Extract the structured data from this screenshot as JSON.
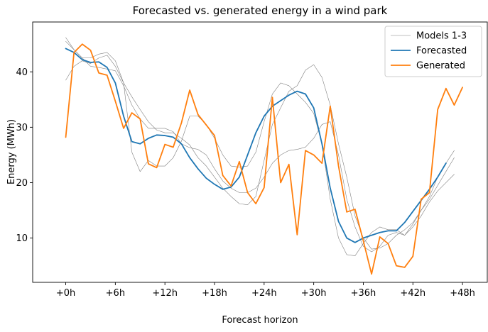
{
  "chart_data": {
    "type": "line",
    "title": "Forecasted vs. generated energy in a wind park",
    "xlabel": "Forecast horizon",
    "ylabel": "Energy (MWh)",
    "xlim": [
      -4,
      51
    ],
    "ylim": [
      2,
      49
    ],
    "xticks": [
      0,
      6,
      12,
      18,
      24,
      30,
      36,
      42,
      48
    ],
    "xtick_labels": [
      "+0h",
      "+6h",
      "+12h",
      "+18h",
      "+24h",
      "+30h",
      "+36h",
      "+42h",
      "+48h"
    ],
    "yticks": [
      10,
      20,
      30,
      40
    ],
    "ytick_labels": [
      "10",
      "20",
      "30",
      "40"
    ],
    "legend_position": "top-right",
    "series": [
      {
        "name": "Models 1-3",
        "color": "#808080",
        "legend": true,
        "values": [
          46.2,
          44.0,
          42.5,
          41.0,
          40.8,
          40.5,
          40.2,
          37.5,
          34.0,
          31.5,
          29.8,
          29.8,
          29.8,
          29.2,
          27.0,
          26.3,
          26.0,
          25.0,
          22.5,
          20.3,
          19.0,
          18.2,
          18.2,
          19.0,
          21.0,
          23.5,
          25.0,
          25.8,
          26.0,
          26.4,
          28.0,
          30.5,
          31.0,
          25.0,
          17.0,
          12.0,
          8.5,
          7.5,
          8.5,
          10.5,
          11.0,
          10.5,
          12.0,
          14.0,
          16.5,
          18.5,
          20.0,
          21.5
        ]
      },
      {
        "name": "Model 2",
        "color": "#808080",
        "legend": false,
        "values": [
          45.5,
          44.0,
          42.5,
          42.5,
          43.2,
          43.5,
          42.0,
          38.0,
          35.5,
          33.2,
          31.0,
          29.5,
          29.0,
          29.0,
          28.0,
          26.8,
          24.5,
          23.0,
          21.0,
          19.0,
          17.5,
          16.2,
          16.0,
          17.5,
          24.0,
          30.5,
          33.5,
          36.5,
          37.5,
          40.3,
          41.3,
          39.0,
          34.0,
          27.0,
          21.0,
          14.0,
          10.0,
          8.0,
          8.2,
          9.0,
          10.5,
          11.5,
          12.8,
          15.0,
          17.0,
          19.5,
          22.0,
          24.5
        ]
      },
      {
        "name": "Model 3",
        "color": "#808080",
        "legend": false,
        "values": [
          38.5,
          41.0,
          42.0,
          41.5,
          42.5,
          43.0,
          41.0,
          38.0,
          25.5,
          22.0,
          24.0,
          23.0,
          23.0,
          24.5,
          27.5,
          32.0,
          32.0,
          30.5,
          28.0,
          25.0,
          23.0,
          22.8,
          23.0,
          25.5,
          31.0,
          36.0,
          38.0,
          37.5,
          36.0,
          34.5,
          32.5,
          27.0,
          17.0,
          10.0,
          7.0,
          6.8,
          9.0,
          11.0,
          12.0,
          11.5,
          11.5,
          10.5,
          12.5,
          15.0,
          17.5,
          21.0,
          23.5,
          25.8
        ]
      },
      {
        "name": "Forecasted",
        "color": "#1f77b4",
        "legend": true,
        "values": [
          44.2,
          43.5,
          42.2,
          41.7,
          41.8,
          40.8,
          38.0,
          32.0,
          27.4,
          27.0,
          28.0,
          28.6,
          28.5,
          28.2,
          27.0,
          24.5,
          22.5,
          20.8,
          19.7,
          18.8,
          19.2,
          21.0,
          25.0,
          29.0,
          32.0,
          33.8,
          34.8,
          35.8,
          36.5,
          36.0,
          33.5,
          27.0,
          19.0,
          13.0,
          10.0,
          9.2,
          10.0,
          10.5,
          11.0,
          11.3,
          11.3,
          12.8,
          14.8,
          16.8,
          18.8,
          21.0,
          23.5
        ]
      },
      {
        "name": "Generated",
        "color": "#ff7f0e",
        "legend": true,
        "values": [
          28.2,
          43.5,
          45.0,
          43.9,
          39.8,
          39.4,
          34.7,
          29.8,
          32.6,
          31.5,
          23.4,
          22.7,
          26.9,
          26.4,
          30.8,
          36.7,
          32.3,
          30.4,
          28.5,
          21.3,
          19.4,
          23.8,
          18.2,
          16.2,
          19.1,
          35.4,
          20.0,
          23.3,
          10.6,
          25.8,
          25.0,
          23.5,
          33.8,
          23.0,
          14.7,
          15.2,
          9.5,
          3.5,
          10.2,
          9.0,
          5.0,
          4.7,
          6.7,
          17.0,
          18.2,
          33.2,
          37.0,
          34.0,
          37.2
        ]
      }
    ]
  }
}
